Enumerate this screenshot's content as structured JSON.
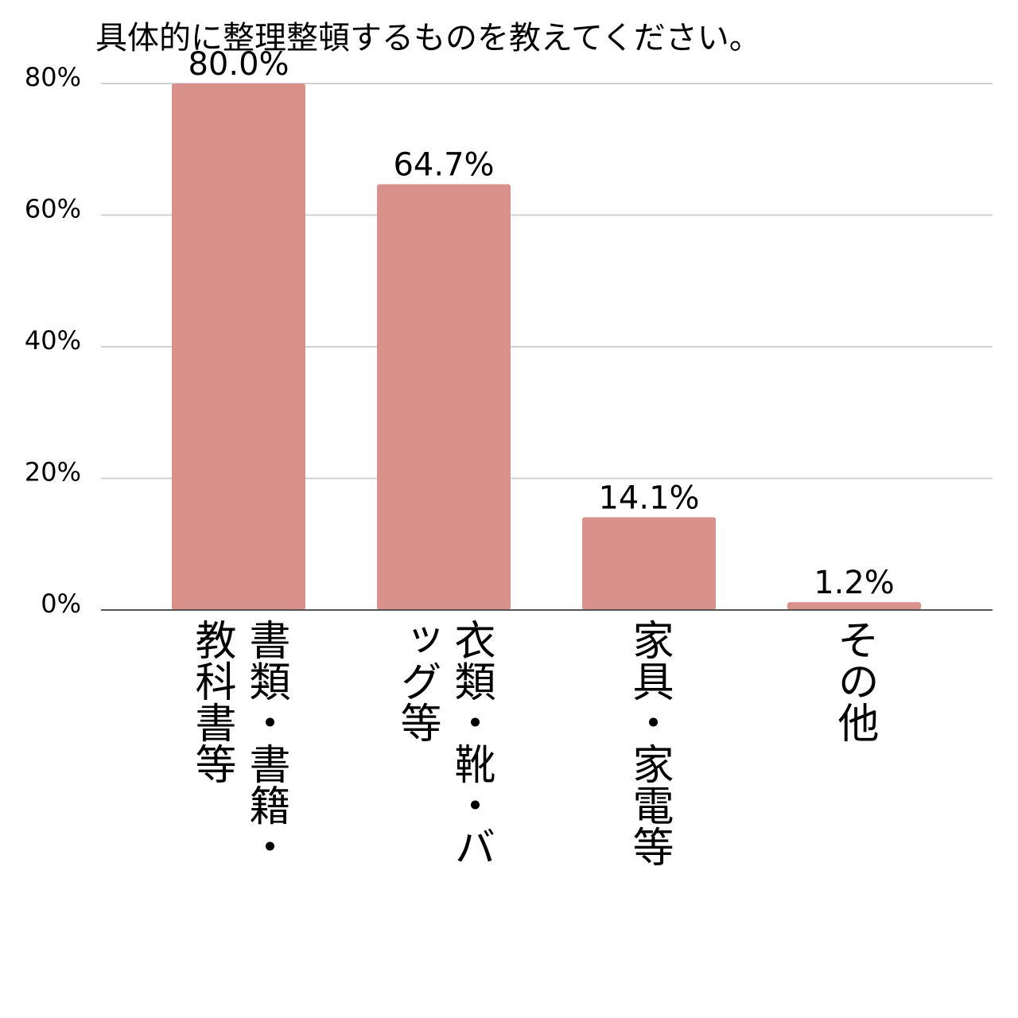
{
  "chart_data": {
    "type": "bar",
    "title": "具体的に整理整頓するものを教えてください。",
    "categories": [
      "書類・書籍・教科書等",
      "衣類・靴・バッグ等",
      "家具・家電等",
      "その他"
    ],
    "values": [
      80.0,
      64.7,
      14.1,
      1.2
    ],
    "value_labels": [
      "80.0%",
      "64.7%",
      "14.1%",
      "1.2%"
    ],
    "color": "#d9918c",
    "ylim": [
      0,
      80
    ],
    "yticks": [
      {
        "value": 0,
        "label": "0%"
      },
      {
        "value": 20,
        "label": "20%"
      },
      {
        "value": 40,
        "label": "40%"
      },
      {
        "value": 60,
        "label": "60%"
      },
      {
        "value": 80,
        "label": "80%"
      }
    ],
    "grid": true
  }
}
